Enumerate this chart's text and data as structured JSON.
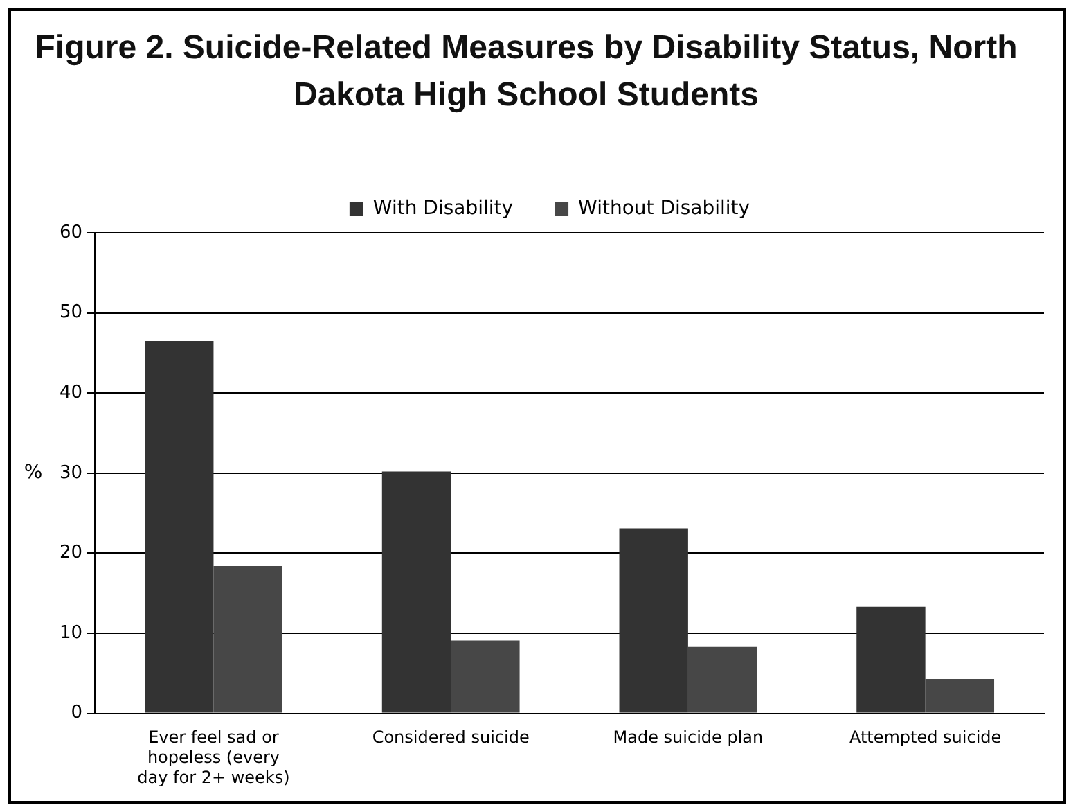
{
  "chart_data": {
    "type": "bar",
    "title": "Figure 2. Suicide-Related Measures by Disability Status, North Dakota High School Students",
    "ylabel": "%",
    "categories": [
      "Ever feel sad or hopeless (every day for 2+ weeks)",
      "Considered suicide",
      "Made suicide plan",
      "Attempted suicide"
    ],
    "series": [
      {
        "name": "With Disability",
        "color": "#333333",
        "values": [
          46.5,
          30.2,
          23.1,
          13.3
        ]
      },
      {
        "name": "Without Disability",
        "color": "#474747",
        "values": [
          18.4,
          9.1,
          8.3,
          4.3
        ]
      }
    ],
    "ylim": [
      0,
      60
    ],
    "yticks": [
      0,
      10,
      20,
      30,
      40,
      50,
      60
    ],
    "grid": "y",
    "legend": "top"
  }
}
